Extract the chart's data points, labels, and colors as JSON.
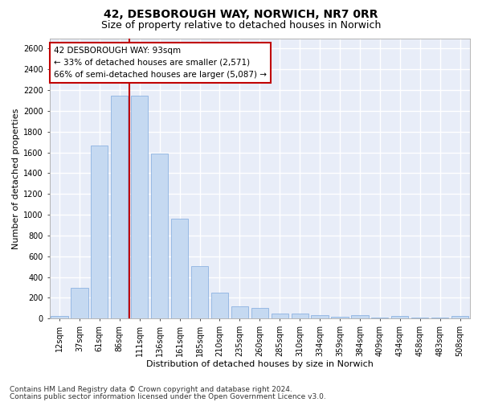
{
  "title1": "42, DESBOROUGH WAY, NORWICH, NR7 0RR",
  "title2": "Size of property relative to detached houses in Norwich",
  "xlabel": "Distribution of detached houses by size in Norwich",
  "ylabel": "Number of detached properties",
  "categories": [
    "12sqm",
    "37sqm",
    "61sqm",
    "86sqm",
    "111sqm",
    "136sqm",
    "161sqm",
    "185sqm",
    "210sqm",
    "235sqm",
    "260sqm",
    "285sqm",
    "310sqm",
    "334sqm",
    "359sqm",
    "384sqm",
    "409sqm",
    "434sqm",
    "458sqm",
    "483sqm",
    "508sqm"
  ],
  "values": [
    25,
    300,
    1670,
    2150,
    2150,
    1590,
    960,
    505,
    250,
    120,
    100,
    50,
    50,
    35,
    20,
    35,
    10,
    25,
    10,
    10,
    25
  ],
  "bar_color": "#c5d9f1",
  "bar_edge_color": "#8db3e2",
  "vline_color": "#c00000",
  "vline_x": 3.5,
  "annotation_text": "42 DESBOROUGH WAY: 93sqm\n← 33% of detached houses are smaller (2,571)\n66% of semi-detached houses are larger (5,087) →",
  "annotation_box_facecolor": "#ffffff",
  "annotation_box_edgecolor": "#c00000",
  "ylim": [
    0,
    2700
  ],
  "yticks": [
    0,
    200,
    400,
    600,
    800,
    1000,
    1200,
    1400,
    1600,
    1800,
    2000,
    2200,
    2400,
    2600
  ],
  "footer1": "Contains HM Land Registry data © Crown copyright and database right 2024.",
  "footer2": "Contains public sector information licensed under the Open Government Licence v3.0.",
  "plot_bgcolor": "#e8edf8",
  "fig_bgcolor": "#ffffff",
  "grid_color": "#ffffff",
  "title1_fontsize": 10,
  "title2_fontsize": 9,
  "axis_label_fontsize": 8,
  "tick_fontsize": 7,
  "footer_fontsize": 6.5,
  "annot_fontsize": 7.5
}
